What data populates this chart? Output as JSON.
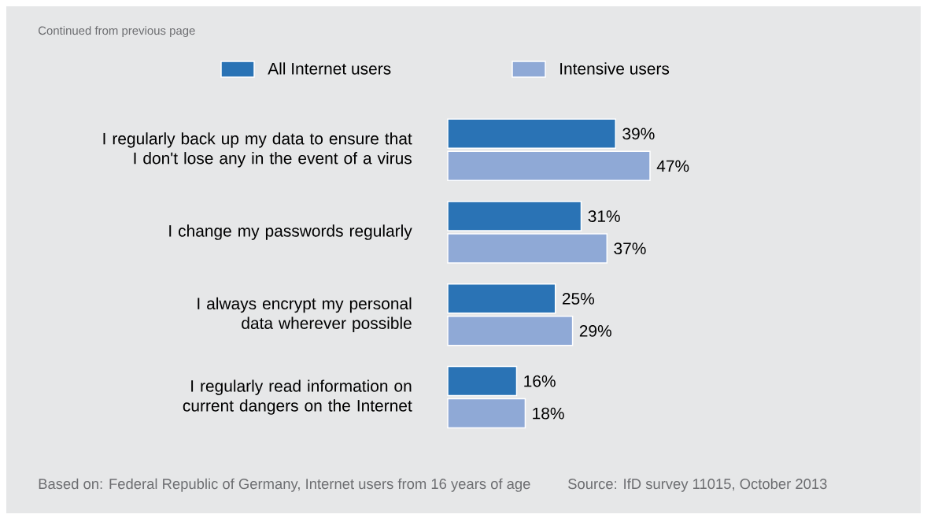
{
  "chart_data": {
    "type": "bar",
    "orientation": "horizontal",
    "legend": "top",
    "categories": [
      "I regularly back up my data to ensure that I don't lose any in the event of a virus",
      "I change my passwords regularly",
      "I always encrypt my personal data wherever possible",
      "I regularly read information on current dangers on the Internet"
    ],
    "series": [
      {
        "name": "All Internet users",
        "color": "#2a73b5",
        "values": [
          39,
          31,
          25,
          16
        ],
        "value_labels": [
          "39%",
          "31%",
          "25%",
          "16%"
        ]
      },
      {
        "name": "Intensive users",
        "color": "#8fa9d6",
        "values": [
          47,
          37,
          29,
          18
        ],
        "value_labels": [
          "47%",
          "37%",
          "29%",
          "18%"
        ]
      }
    ],
    "annotations": [
      "Continued from previous page",
      "Based on: Federal Republic of Germany, Internet users from 16 years of age",
      "Source: IfD survey 11015, October 2013"
    ]
  }
}
